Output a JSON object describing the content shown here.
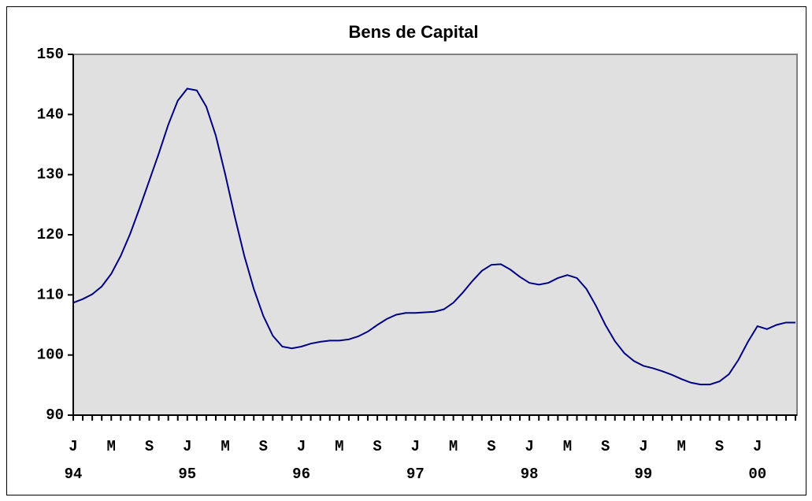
{
  "chart_data": {
    "type": "line",
    "title": "Bens de Capital",
    "categories": [
      "J",
      null,
      null,
      null,
      "M",
      null,
      null,
      null,
      "S",
      null,
      null,
      null,
      "J",
      null,
      null,
      null,
      "M",
      null,
      null,
      null,
      "S",
      null,
      null,
      null,
      "J",
      null,
      null,
      null,
      "M",
      null,
      null,
      null,
      "S",
      null,
      null,
      null,
      "J",
      null,
      null,
      null,
      "M",
      null,
      null,
      null,
      "S",
      null,
      null,
      null,
      "J",
      null,
      null,
      null,
      "M",
      null,
      null,
      null,
      "S",
      null,
      null,
      null,
      "J",
      null,
      null,
      null,
      "M",
      null,
      null,
      null,
      "S",
      null,
      null,
      null,
      "J",
      null,
      null,
      null,
      null
    ],
    "years": [
      "94",
      null,
      null,
      null,
      null,
      null,
      null,
      null,
      null,
      null,
      null,
      null,
      "95",
      null,
      null,
      null,
      null,
      null,
      null,
      null,
      null,
      null,
      null,
      null,
      "96",
      null,
      null,
      null,
      null,
      null,
      null,
      null,
      null,
      null,
      null,
      null,
      "97",
      null,
      null,
      null,
      null,
      null,
      null,
      null,
      null,
      null,
      null,
      null,
      "98",
      null,
      null,
      null,
      null,
      null,
      null,
      null,
      null,
      null,
      null,
      null,
      "99",
      null,
      null,
      null,
      null,
      null,
      null,
      null,
      null,
      null,
      null,
      null,
      "00",
      null,
      null,
      null,
      null
    ],
    "series": [
      {
        "name": "Bens de Capital",
        "color": "#000080",
        "values": [
          108.7,
          109.3,
          110.1,
          111.4,
          113.5,
          116.5,
          120.2,
          124.5,
          129,
          133.5,
          138.3,
          142.3,
          144.3,
          144,
          141.3,
          136.5,
          130,
          123,
          116.5,
          111,
          106.5,
          103.2,
          101.4,
          101.1,
          101.4,
          101.9,
          102.2,
          102.4,
          102.4,
          102.6,
          103.1,
          103.9,
          105,
          106,
          106.7,
          107,
          107,
          107.1,
          107.2,
          107.6,
          108.7,
          110.4,
          112.3,
          114,
          115,
          115.1,
          114.2,
          113,
          112,
          111.7,
          112,
          112.8,
          113.3,
          112.8,
          111,
          108.2,
          105,
          102.3,
          100.3,
          99,
          98.2,
          97.8,
          97.3,
          96.7,
          96,
          95.4,
          95.1,
          95.1,
          95.6,
          96.8,
          99.2,
          102.2,
          104.8,
          104.3,
          105,
          105.4,
          105.4
        ]
      }
    ],
    "ylim": [
      90,
      150
    ],
    "yticks": [
      90,
      100,
      110,
      120,
      130,
      140,
      150
    ],
    "grid": false
  }
}
